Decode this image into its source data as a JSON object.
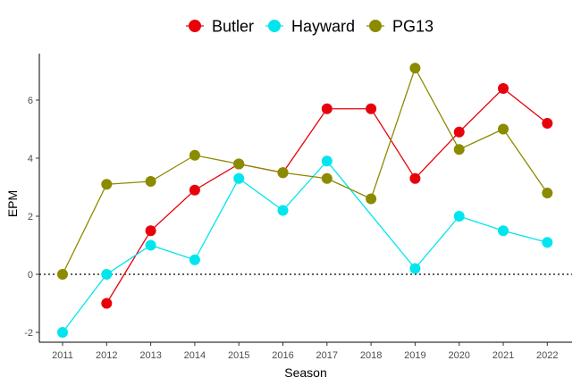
{
  "chart_data": {
    "type": "line",
    "title": "",
    "xlabel": "Season",
    "ylabel": "EPM",
    "ylim": [
      -2.2,
      7.4
    ],
    "y_ticks": [
      -2,
      0,
      2,
      4,
      6
    ],
    "categories": [
      "2011",
      "2012",
      "2013",
      "2014",
      "2015",
      "2016",
      "2017",
      "2018",
      "2019",
      "2020",
      "2021",
      "2022"
    ],
    "reference_line": 0,
    "legend_position": "top",
    "series": [
      {
        "name": "Butler",
        "color": "#e8000b",
        "values": [
          null,
          -1.0,
          1.5,
          2.9,
          3.8,
          3.5,
          5.7,
          5.7,
          3.3,
          4.9,
          6.4,
          5.2
        ]
      },
      {
        "name": "Hayward",
        "color": "#00e5ee",
        "values": [
          -2.0,
          0.0,
          1.0,
          0.5,
          3.3,
          2.2,
          3.9,
          null,
          0.2,
          2.0,
          1.5,
          1.1
        ]
      },
      {
        "name": "PG13",
        "color": "#8b8b00",
        "values": [
          0.0,
          3.1,
          3.2,
          4.1,
          3.8,
          3.5,
          3.3,
          2.6,
          7.1,
          4.3,
          5.0,
          2.8
        ]
      }
    ]
  }
}
